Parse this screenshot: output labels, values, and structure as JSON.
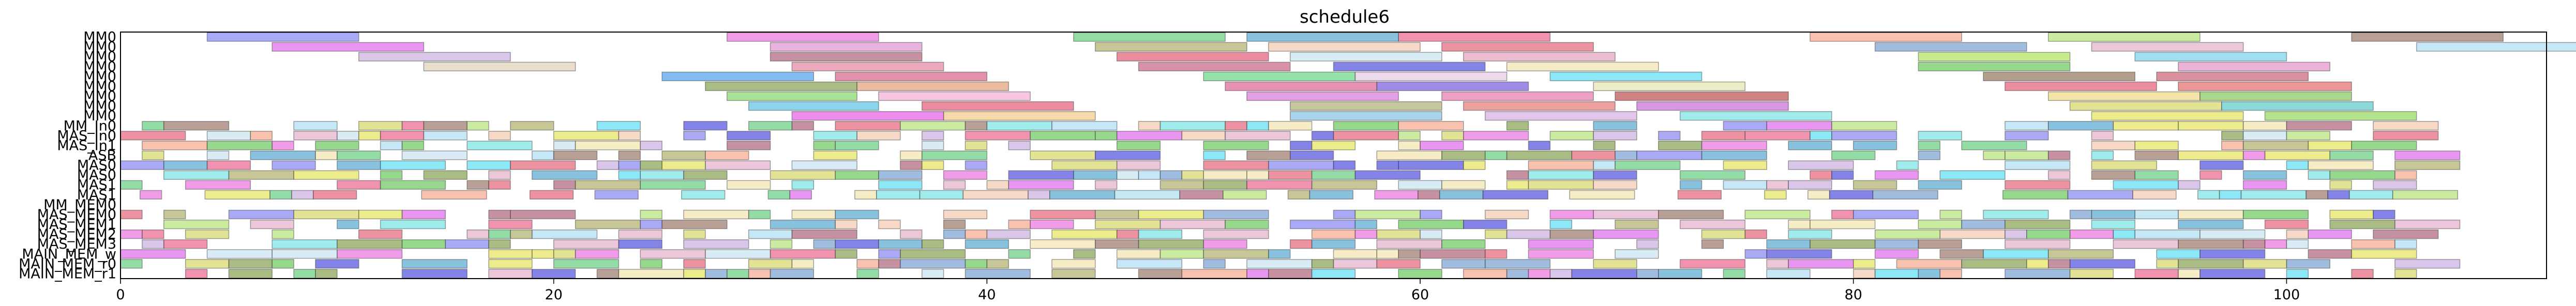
{
  "chart_data": {
    "type": "gantt",
    "title": "schedule6",
    "xlabel": "",
    "ylabel": "",
    "xlim": [
      0,
      112
    ],
    "x_ticks": [
      0,
      20,
      40,
      60,
      80,
      100
    ],
    "grid": false,
    "rows": [
      "MM0",
      "MM0",
      "MM0",
      "MM0",
      "MM0",
      "MM0",
      "MM0",
      "MM0",
      "MM0",
      "MM_In0",
      "MAS_In0",
      "MAS_In1",
      "ASB",
      "MAS0",
      "MAS0",
      "MAS1",
      "MAS1",
      "MM_MEM0",
      "MAS_MEM0",
      "MAS_MEM1",
      "MAS_MEM2",
      "MAS_MEM3",
      "MAIN_MEM_w",
      "MAIN_MEM_r0",
      "MAIN_MEM_r1"
    ],
    "bars": [
      {
        "row": 0,
        "start": 4,
        "end": 11,
        "color": "#6f6ff0"
      },
      {
        "row": 0,
        "start": 28,
        "end": 35,
        "color": "#e85ad8"
      },
      {
        "row": 0,
        "start": 44,
        "end": 51,
        "color": "#4cc46a"
      },
      {
        "row": 0,
        "start": 52,
        "end": 59,
        "color": "#3a9ac8"
      },
      {
        "row": 0,
        "start": 59,
        "end": 66,
        "color": "#e84a7a"
      },
      {
        "row": 0,
        "start": 78,
        "end": 85,
        "color": "#f59a7a"
      },
      {
        "row": 0,
        "start": 89,
        "end": 96,
        "color": "#a8e060"
      },
      {
        "row": 0,
        "start": 103,
        "end": 110,
        "color": "#8a6050"
      },
      {
        "row": 1,
        "start": 7,
        "end": 14,
        "color": "#d850e8"
      },
      {
        "row": 1,
        "start": 30,
        "end": 37,
        "color": "#d880c8"
      },
      {
        "row": 1,
        "start": 45,
        "end": 52,
        "color": "#a0a050"
      },
      {
        "row": 1,
        "start": 53,
        "end": 60,
        "color": "#f0c0a0"
      },
      {
        "row": 1,
        "start": 61,
        "end": 68,
        "color": "#e04a60"
      },
      {
        "row": 1,
        "start": 81,
        "end": 88,
        "color": "#6090c8"
      },
      {
        "row": 1,
        "start": 91,
        "end": 98,
        "color": "#e0a0c0"
      },
      {
        "row": 1,
        "start": 106,
        "end": 114,
        "color": "#a0d8f0"
      },
      {
        "row": 2,
        "start": 11,
        "end": 18,
        "color": "#c0a0d8"
      },
      {
        "row": 2,
        "start": 30,
        "end": 37,
        "color": "#a04860"
      },
      {
        "row": 2,
        "start": 46,
        "end": 53,
        "color": "#e04060"
      },
      {
        "row": 2,
        "start": 54,
        "end": 61,
        "color": "#c0e0f0"
      },
      {
        "row": 2,
        "start": 62,
        "end": 69,
        "color": "#e090b0"
      },
      {
        "row": 2,
        "start": 83,
        "end": 90,
        "color": "#a0e040"
      },
      {
        "row": 2,
        "start": 93,
        "end": 100,
        "color": "#60c8e8"
      },
      {
        "row": 3,
        "start": 14,
        "end": 21,
        "color": "#d8c8a8"
      },
      {
        "row": 3,
        "start": 31,
        "end": 38,
        "color": "#e07090"
      },
      {
        "row": 3,
        "start": 47,
        "end": 54,
        "color": "#c04870"
      },
      {
        "row": 3,
        "start": 56,
        "end": 63,
        "color": "#3030d8"
      },
      {
        "row": 3,
        "start": 64,
        "end": 71,
        "color": "#f0e0a0"
      },
      {
        "row": 3,
        "start": 83,
        "end": 90,
        "color": "#50c040"
      },
      {
        "row": 3,
        "start": 95,
        "end": 102,
        "color": "#e080c0"
      },
      {
        "row": 4,
        "start": 25,
        "end": 32,
        "color": "#3090e8"
      },
      {
        "row": 4,
        "start": 33,
        "end": 40,
        "color": "#d04870"
      },
      {
        "row": 4,
        "start": 50,
        "end": 57,
        "color": "#50d070"
      },
      {
        "row": 4,
        "start": 57,
        "end": 64,
        "color": "#e0c0e0"
      },
      {
        "row": 4,
        "start": 66,
        "end": 73,
        "color": "#40d8f0"
      },
      {
        "row": 4,
        "start": 86,
        "end": 93,
        "color": "#806040"
      },
      {
        "row": 4,
        "start": 94,
        "end": 101,
        "color": "#c04860"
      },
      {
        "row": 5,
        "start": 27,
        "end": 34,
        "color": "#709030"
      },
      {
        "row": 5,
        "start": 34,
        "end": 41,
        "color": "#e09060"
      },
      {
        "row": 5,
        "start": 51,
        "end": 58,
        "color": "#d84a80"
      },
      {
        "row": 5,
        "start": 58,
        "end": 65,
        "color": "#6040d8"
      },
      {
        "row": 5,
        "start": 68,
        "end": 75,
        "color": "#e0e0a0"
      },
      {
        "row": 5,
        "start": 87,
        "end": 94,
        "color": "#e04060"
      },
      {
        "row": 5,
        "start": 95,
        "end": 103,
        "color": "#e05050"
      },
      {
        "row": 6,
        "start": 28,
        "end": 34,
        "color": "#70d050"
      },
      {
        "row": 6,
        "start": 35,
        "end": 42,
        "color": "#f0a0d0"
      },
      {
        "row": 6,
        "start": 52,
        "end": 59,
        "color": "#d060d0"
      },
      {
        "row": 6,
        "start": 61,
        "end": 68,
        "color": "#e060a0"
      },
      {
        "row": 6,
        "start": 69,
        "end": 77,
        "color": "#b03030"
      },
      {
        "row": 6,
        "start": 89,
        "end": 96,
        "color": "#f0d070"
      },
      {
        "row": 6,
        "start": 96,
        "end": 103,
        "color": "#70c040"
      },
      {
        "row": 7,
        "start": 29,
        "end": 35,
        "color": "#40b8e0"
      },
      {
        "row": 7,
        "start": 37,
        "end": 44,
        "color": "#e04060"
      },
      {
        "row": 7,
        "start": 54,
        "end": 61,
        "color": "#a0a060"
      },
      {
        "row": 7,
        "start": 62,
        "end": 69,
        "color": "#e06060"
      },
      {
        "row": 7,
        "start": 70,
        "end": 77,
        "color": "#c050d0"
      },
      {
        "row": 7,
        "start": 90,
        "end": 97,
        "color": "#d0d050"
      },
      {
        "row": 7,
        "start": 97,
        "end": 104,
        "color": "#40c0c0"
      },
      {
        "row": 8,
        "start": 31,
        "end": 38,
        "color": "#e040e0"
      },
      {
        "row": 8,
        "start": 38,
        "end": 45,
        "color": "#f0c070"
      },
      {
        "row": 8,
        "start": 54,
        "end": 61,
        "color": "#70b8e0"
      },
      {
        "row": 8,
        "start": 63,
        "end": 70,
        "color": "#d0a0e0"
      },
      {
        "row": 8,
        "start": 72,
        "end": 79,
        "color": "#60e0e0"
      },
      {
        "row": 8,
        "start": 91,
        "end": 98,
        "color": "#e0e040"
      },
      {
        "row": 8,
        "start": 99,
        "end": 106,
        "color": "#80d040"
      }
    ],
    "filler": {
      "rows": [
        9,
        10,
        11,
        12,
        13,
        14,
        15,
        16,
        18,
        19,
        20,
        21,
        22,
        23,
        24
      ],
      "palette": [
        "#6f6ff0",
        "#e85ad8",
        "#4cc46a",
        "#3a9ac8",
        "#e84a7a",
        "#f59a7a",
        "#a8e060",
        "#8a6050",
        "#d850e8",
        "#a0a050",
        "#f0c0a0",
        "#e04a60",
        "#6090c8",
        "#e0a0c0",
        "#a0d8f0",
        "#c0a0d8",
        "#a04860",
        "#c0e0f0",
        "#50c040",
        "#3030d8",
        "#f0e0a0",
        "#709030",
        "#40d8f0",
        "#e0e040",
        "#60e0e0",
        "#d0d050"
      ]
    }
  }
}
